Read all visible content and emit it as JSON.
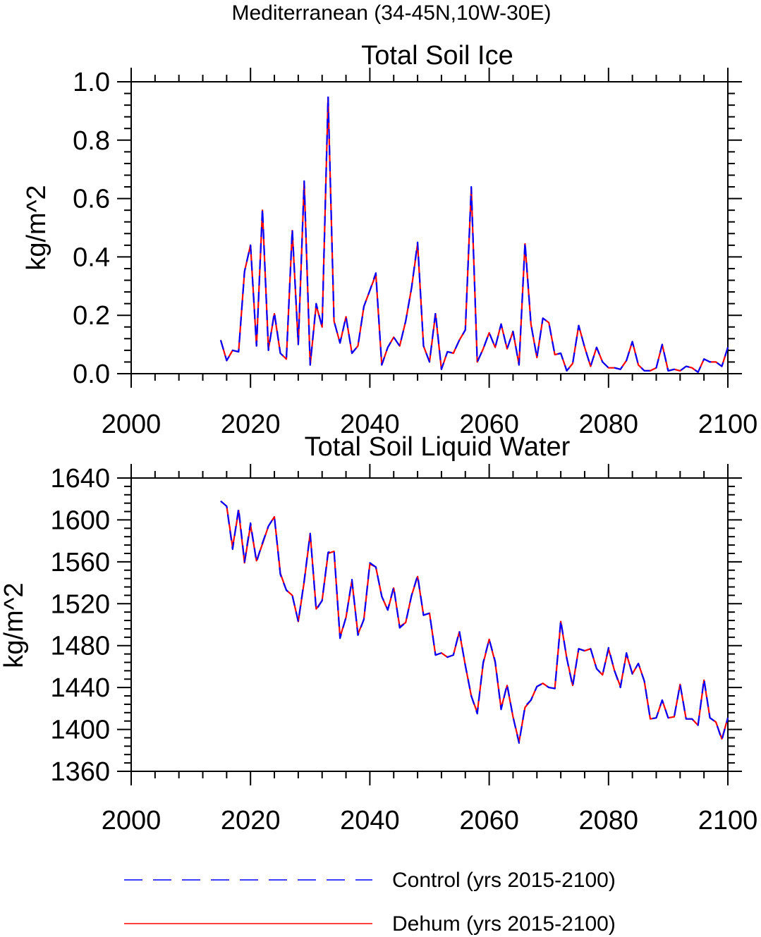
{
  "figure": {
    "main_title": "Mediterranean (34-45N,10W-30E)"
  },
  "legend": {
    "items": [
      {
        "label": "Control (yrs 2015-2100)",
        "color": "#0000ff",
        "style": "dashed"
      },
      {
        "label": "Dehum (yrs 2015-2100)",
        "color": "#ff0000",
        "style": "solid"
      }
    ]
  },
  "chart_data": [
    {
      "type": "line",
      "title": "Total Soil Ice",
      "xlabel": "",
      "ylabel": "kg/m^2",
      "xlim": [
        2000,
        2100
      ],
      "ylim": [
        0,
        1.0
      ],
      "xticks": [
        2000,
        2020,
        2040,
        2060,
        2080,
        2100
      ],
      "yticks": [
        0.0,
        0.2,
        0.4,
        0.6,
        0.8,
        1.0
      ],
      "ytick_labels": [
        "0.0",
        "0.2",
        "0.4",
        "0.6",
        "0.8",
        "1.0"
      ],
      "grid": false,
      "x_start": 2015,
      "series": [
        {
          "name": "Control (yrs 2015-2100)",
          "color": "#0000ff",
          "style": "dashed",
          "values": [
            0.115,
            0.045,
            0.08,
            0.075,
            0.35,
            0.44,
            0.095,
            0.565,
            0.08,
            0.21,
            0.07,
            0.05,
            0.495,
            0.1,
            0.66,
            0.03,
            0.24,
            0.16,
            0.95,
            0.18,
            0.105,
            0.195,
            0.07,
            0.095,
            0.23,
            0.285,
            0.345,
            0.03,
            0.09,
            0.125,
            0.095,
            0.18,
            0.295,
            0.45,
            0.095,
            0.04,
            0.21,
            0.015,
            0.075,
            0.07,
            0.115,
            0.15,
            0.64,
            0.04,
            0.085,
            0.14,
            0.09,
            0.17,
            0.085,
            0.145,
            0.03,
            0.45,
            0.17,
            0.055,
            0.19,
            0.175,
            0.065,
            0.07,
            0.01,
            0.035,
            0.165,
            0.09,
            0.025,
            0.09,
            0.04,
            0.02,
            0.02,
            0.015,
            0.045,
            0.11,
            0.03,
            0.01,
            0.01,
            0.02,
            0.1,
            0.01,
            0.015,
            0.01,
            0.025,
            0.02,
            0.005,
            0.05,
            0.04,
            0.04,
            0.025,
            0.09
          ]
        },
        {
          "name": "Dehum (yrs 2015-2100)",
          "color": "#ff0000",
          "style": "solid",
          "values": [
            0.115,
            0.045,
            0.08,
            0.075,
            0.35,
            0.44,
            0.095,
            0.56,
            0.085,
            0.205,
            0.07,
            0.05,
            0.49,
            0.1,
            0.655,
            0.03,
            0.235,
            0.16,
            0.945,
            0.18,
            0.105,
            0.195,
            0.07,
            0.095,
            0.23,
            0.285,
            0.34,
            0.03,
            0.09,
            0.125,
            0.095,
            0.18,
            0.295,
            0.445,
            0.095,
            0.04,
            0.205,
            0.015,
            0.075,
            0.07,
            0.115,
            0.15,
            0.635,
            0.04,
            0.085,
            0.14,
            0.09,
            0.17,
            0.085,
            0.145,
            0.03,
            0.445,
            0.17,
            0.055,
            0.19,
            0.175,
            0.065,
            0.07,
            0.01,
            0.035,
            0.165,
            0.09,
            0.025,
            0.09,
            0.04,
            0.02,
            0.02,
            0.015,
            0.045,
            0.11,
            0.03,
            0.01,
            0.01,
            0.02,
            0.1,
            0.01,
            0.015,
            0.01,
            0.025,
            0.02,
            0.005,
            0.05,
            0.04,
            0.04,
            0.025,
            0.09
          ]
        }
      ]
    },
    {
      "type": "line",
      "title": "Total Soil Liquid Water",
      "xlabel": "",
      "ylabel": "kg/m^2",
      "xlim": [
        2000,
        2100
      ],
      "ylim": [
        1360,
        1640
      ],
      "xticks": [
        2000,
        2020,
        2040,
        2060,
        2080,
        2100
      ],
      "yticks": [
        1360,
        1400,
        1440,
        1480,
        1520,
        1560,
        1600,
        1640
      ],
      "ytick_labels": [
        "1360",
        "1400",
        "1440",
        "1480",
        "1520",
        "1560",
        "1600",
        "1640"
      ],
      "grid": false,
      "x_start": 2015,
      "series": [
        {
          "name": "Control (yrs 2015-2100)",
          "color": "#0000ff",
          "style": "dashed",
          "values": [
            1618,
            1613,
            1572,
            1611,
            1560,
            1597,
            1560,
            1578,
            1594,
            1603,
            1548,
            1533,
            1528,
            1503,
            1542,
            1587,
            1514,
            1523,
            1569,
            1571,
            1487,
            1507,
            1543,
            1490,
            1505,
            1559,
            1555,
            1527,
            1514,
            1536,
            1497,
            1502,
            1528,
            1547,
            1509,
            1511,
            1471,
            1473,
            1469,
            1471,
            1494,
            1461,
            1432,
            1415,
            1464,
            1486,
            1465,
            1419,
            1443,
            1412,
            1387,
            1422,
            1428,
            1441,
            1444,
            1440,
            1439,
            1504,
            1468,
            1441,
            1477,
            1475,
            1477,
            1458,
            1452,
            1478,
            1456,
            1440,
            1473,
            1453,
            1463,
            1446,
            1410,
            1411,
            1428,
            1411,
            1412,
            1443,
            1410,
            1410,
            1404,
            1448,
            1411,
            1407,
            1390,
            1411
          ]
        },
        {
          "name": "Dehum (yrs 2015-2100)",
          "color": "#ff0000",
          "style": "solid",
          "values": [
            1618,
            1613,
            1574,
            1609,
            1559,
            1595,
            1561,
            1577,
            1594,
            1603,
            1549,
            1533,
            1528,
            1503,
            1541,
            1587,
            1515,
            1523,
            1568,
            1570,
            1488,
            1507,
            1542,
            1491,
            1505,
            1558,
            1555,
            1527,
            1514,
            1535,
            1498,
            1502,
            1528,
            1546,
            1509,
            1511,
            1471,
            1473,
            1469,
            1471,
            1493,
            1461,
            1432,
            1416,
            1463,
            1486,
            1464,
            1420,
            1442,
            1412,
            1388,
            1421,
            1428,
            1441,
            1444,
            1440,
            1439,
            1503,
            1468,
            1442,
            1477,
            1475,
            1477,
            1458,
            1452,
            1477,
            1456,
            1441,
            1472,
            1453,
            1463,
            1446,
            1410,
            1411,
            1428,
            1411,
            1412,
            1443,
            1410,
            1410,
            1404,
            1447,
            1411,
            1407,
            1391,
            1411
          ]
        }
      ]
    }
  ]
}
